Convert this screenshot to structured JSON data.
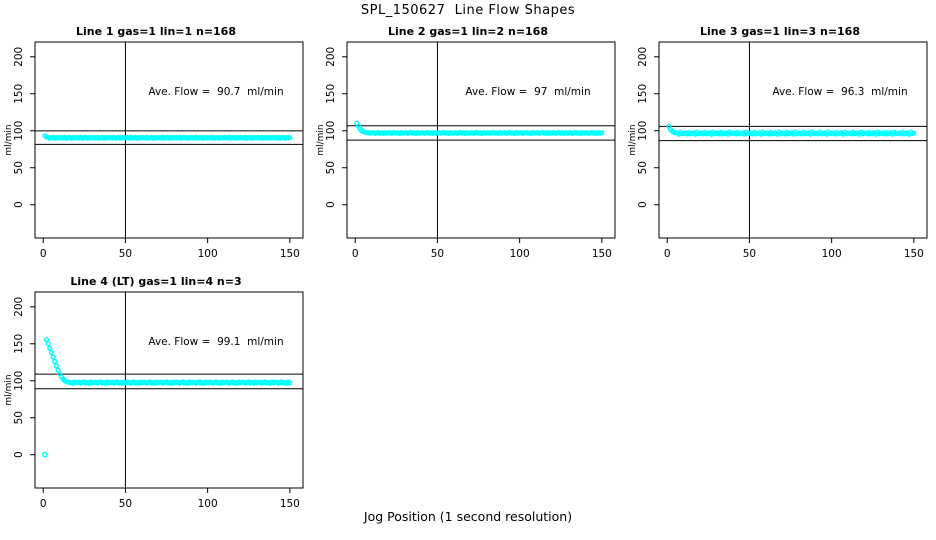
{
  "chart_data": {
    "type": "scatter",
    "title": "SPL_150627  Line Flow Shapes",
    "xlabel": "Jog Position (1 second resolution)",
    "ylabel": "ml/min",
    "x_ticks": [
      0,
      50,
      100,
      150
    ],
    "y_ticks": [
      0,
      50,
      100,
      150,
      200
    ],
    "x_range": [
      -5,
      158
    ],
    "y_range": [
      -45,
      220
    ],
    "vline_x": 50,
    "point_color": "#00FFFF",
    "line_color": "#000000",
    "background_color": "#FFFFFF",
    "legend": "none",
    "grid": false,
    "panels": [
      {
        "title": "Line 1 gas=1 lin=1 n=168",
        "ave_flow_label": "Ave. Flow =  90.7  ml/min",
        "ave_flow": 90.7,
        "gas": 1,
        "lin": 1,
        "n": 168,
        "hlines": [
          99.8,
          81.6
        ],
        "series": {
          "x_start": 1,
          "x_step": 1,
          "count": 150,
          "transient_y": [
            93.2,
            91.6
          ],
          "baseline": 90.5,
          "noise": [
            0.3,
            -0.3,
            0.5,
            -0.4,
            0.1,
            0.4,
            -0.5,
            0.2,
            -0.1,
            0.3
          ]
        },
        "special_points": []
      },
      {
        "title": "Line 2 gas=1 lin=2 n=168",
        "ave_flow_label": "Ave. Flow =  97  ml/min",
        "ave_flow": 97,
        "gas": 1,
        "lin": 2,
        "n": 168,
        "hlines": [
          106.7,
          87.3
        ],
        "series": {
          "x_start": 1,
          "x_step": 1,
          "count": 150,
          "transient_y": [
            110.2,
            106.0,
            102.4,
            100.2,
            98.8,
            98.0,
            97.5
          ],
          "baseline": 97.0,
          "noise": [
            0.4,
            -0.4,
            0.2,
            0.6,
            -0.3,
            0.1,
            -0.6,
            0.5,
            -0.2,
            0.3
          ]
        },
        "special_points": []
      },
      {
        "title": "Line 3 gas=1 lin=3 n=168",
        "ave_flow_label": "Ave. Flow =  96.3  ml/min",
        "ave_flow": 96.3,
        "gas": 1,
        "lin": 3,
        "n": 168,
        "hlines": [
          105.9,
          86.7
        ],
        "series": {
          "x_start": 1,
          "x_step": 1,
          "count": 150,
          "transient_y": [
            106.0,
            101.8,
            99.4,
            98.0,
            97.2
          ],
          "baseline": 96.3,
          "noise": [
            0.5,
            -0.6,
            1.6,
            -0.4,
            0.2,
            0.8,
            -0.8,
            1.9,
            -0.3,
            0.4
          ]
        },
        "special_points": []
      },
      {
        "title": "Line 4 (LT) gas=1 lin=4 n=3",
        "ave_flow_label": "Ave. Flow =  99.1  ml/min",
        "ave_flow": 99.1,
        "gas": 1,
        "lin": 4,
        "n": 3,
        "hlines": [
          109.0,
          89.2
        ],
        "series": {
          "x_start": 2,
          "x_step": 1,
          "count": 149,
          "transient_y": [
            155.5,
            150.0,
            144.0,
            138.0,
            132.0,
            126.0,
            120.0,
            114.5,
            109.5,
            105.5,
            102.5,
            100.3,
            99.0,
            98.2,
            97.8
          ],
          "baseline": 97.5,
          "noise": [
            0.6,
            -0.7,
            0.3,
            1.0,
            -0.5,
            0.2,
            -1.0,
            0.8,
            -0.3,
            0.5
          ]
        },
        "special_points": [
          [
            1,
            0
          ]
        ]
      }
    ]
  }
}
